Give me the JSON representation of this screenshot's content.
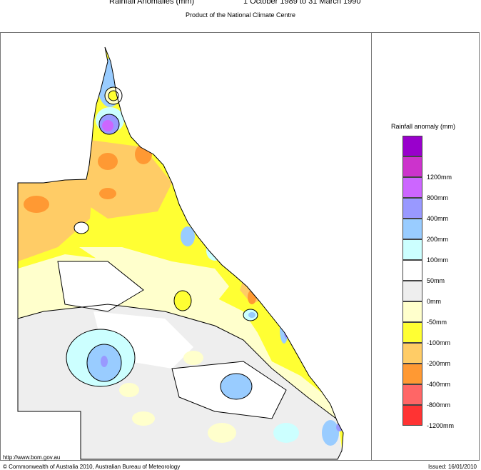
{
  "header": {
    "title": "Rainfall Anomalies (mm)",
    "period": "1 October 1989 to 31 March 1990",
    "subtitle": "Product of the National Climate Centre"
  },
  "legend": {
    "title": "Rainfall anomaly (mm)",
    "items": [
      {
        "color": "#9900cc",
        "label": ""
      },
      {
        "color": "#cc33cc",
        "label": "1200mm"
      },
      {
        "color": "#cc66ff",
        "label": "800mm"
      },
      {
        "color": "#9999ff",
        "label": "400mm"
      },
      {
        "color": "#99ccff",
        "label": "200mm"
      },
      {
        "color": "#ccffff",
        "label": "100mm"
      },
      {
        "color": "#ffffff",
        "label": "50mm"
      },
      {
        "color": "#eeeeee",
        "label": "0mm"
      },
      {
        "color": "#ffffcc",
        "label": "-50mm"
      },
      {
        "color": "#ffff33",
        "label": "-100mm"
      },
      {
        "color": "#ffcc66",
        "label": "-200mm"
      },
      {
        "color": "#ff9933",
        "label": "-400mm"
      },
      {
        "color": "#ff6666",
        "label": "-800mm"
      },
      {
        "color": "#ff3333",
        "label": "-1200mm"
      }
    ]
  },
  "footer": {
    "url": "http://www.bom.gov.au",
    "copyright": "© Commonwealth of Australia 2010, Australian Bureau of Meteorology",
    "issued": "Issued: 16/01/2010"
  }
}
